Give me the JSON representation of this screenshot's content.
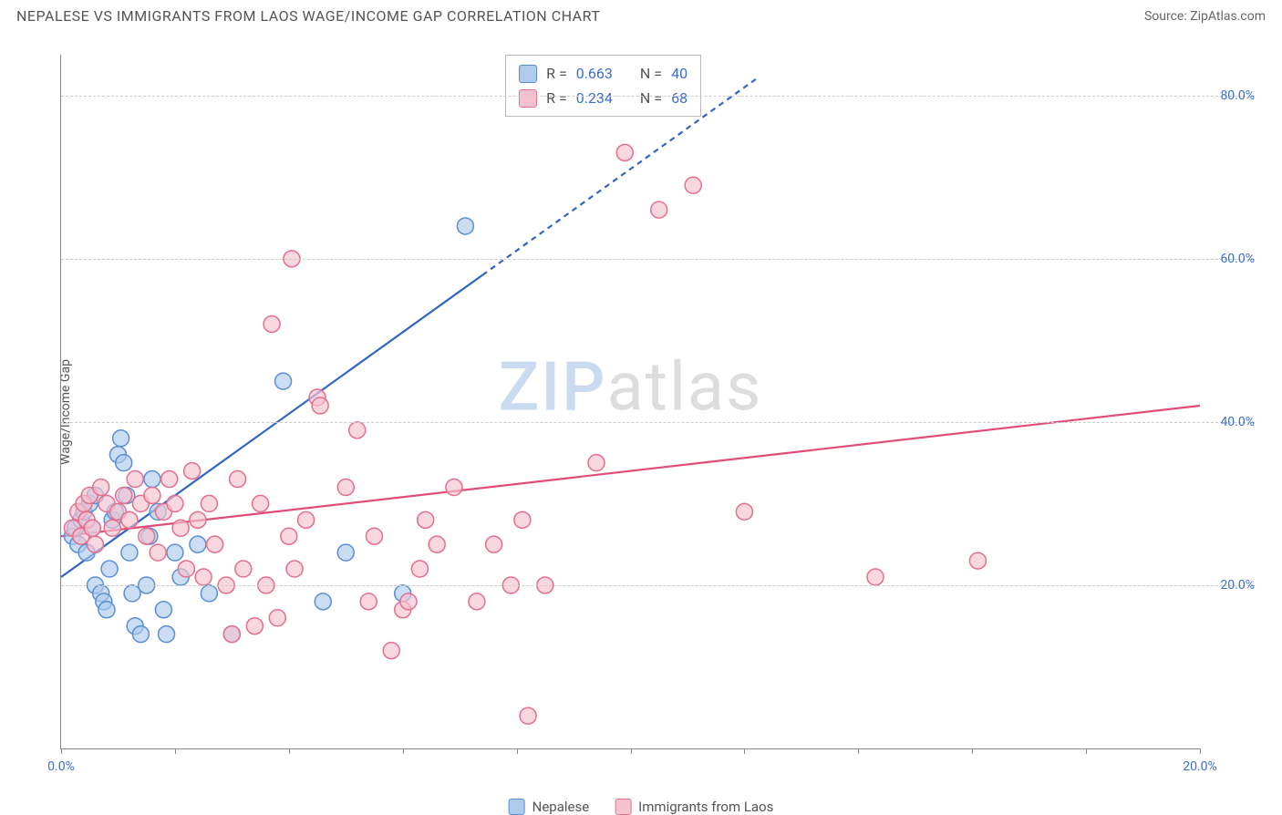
{
  "header": {
    "title": "NEPALESE VS IMMIGRANTS FROM LAOS WAGE/INCOME GAP CORRELATION CHART",
    "source": "Source: ZipAtlas.com"
  },
  "watermark": {
    "zip": "ZIP",
    "atlas": "atlas"
  },
  "chart": {
    "ylabel": "Wage/Income Gap",
    "xlim": [
      0,
      20
    ],
    "ylim": [
      0,
      85
    ],
    "yticks": [
      20,
      40,
      60,
      80
    ],
    "ytick_labels": [
      "20.0%",
      "40.0%",
      "60.0%",
      "80.0%"
    ],
    "xticks": [
      0,
      2,
      4,
      6,
      8,
      10,
      12,
      14,
      16,
      18,
      20
    ],
    "xtick_labels_shown": {
      "0": "0.0%",
      "20": "20.0%"
    },
    "grid_color": "#cccccc",
    "axis_color": "#888888",
    "background_color": "#ffffff",
    "marker_radius": 9,
    "marker_stroke_width": 1.5,
    "trend_line_width": 2.2,
    "series": [
      {
        "name": "Nepalese",
        "color_fill": "#aecbeb",
        "color_stroke": "#5a8fd6",
        "line_color": "#2f66c4",
        "R": 0.663,
        "N": 40,
        "trend": {
          "x1": 0,
          "y1": 21,
          "x2_solid": 7.4,
          "y2_solid": 58,
          "x2_dash": 12.2,
          "y2_dash": 82
        },
        "points": [
          [
            0.2,
            26
          ],
          [
            0.25,
            27
          ],
          [
            0.3,
            25
          ],
          [
            0.35,
            28
          ],
          [
            0.4,
            29
          ],
          [
            0.45,
            24
          ],
          [
            0.5,
            30
          ],
          [
            0.55,
            27
          ],
          [
            0.6,
            31
          ],
          [
            0.6,
            20
          ],
          [
            0.7,
            19
          ],
          [
            0.75,
            18
          ],
          [
            0.8,
            17
          ],
          [
            0.85,
            22
          ],
          [
            0.9,
            28
          ],
          [
            0.95,
            29
          ],
          [
            1.0,
            36
          ],
          [
            1.05,
            38
          ],
          [
            1.1,
            35
          ],
          [
            1.15,
            31
          ],
          [
            1.2,
            24
          ],
          [
            1.25,
            19
          ],
          [
            1.3,
            15
          ],
          [
            1.4,
            14
          ],
          [
            1.5,
            20
          ],
          [
            1.55,
            26
          ],
          [
            1.6,
            33
          ],
          [
            1.7,
            29
          ],
          [
            1.8,
            17
          ],
          [
            1.85,
            14
          ],
          [
            2.0,
            24
          ],
          [
            2.1,
            21
          ],
          [
            2.4,
            25
          ],
          [
            2.6,
            19
          ],
          [
            3.0,
            14
          ],
          [
            3.9,
            45
          ],
          [
            4.6,
            18
          ],
          [
            5.0,
            24
          ],
          [
            6.0,
            19
          ],
          [
            7.1,
            64
          ]
        ]
      },
      {
        "name": "Immigrants from Laos",
        "color_fill": "#f5c2cf",
        "color_stroke": "#e46f8d",
        "line_color": "#e04d77",
        "R": 0.234,
        "N": 68,
        "trend": {
          "x1": 0,
          "y1": 26,
          "x2_solid": 20,
          "y2_solid": 42,
          "x2_dash": 20,
          "y2_dash": 42
        },
        "points": [
          [
            0.2,
            27
          ],
          [
            0.3,
            29
          ],
          [
            0.35,
            26
          ],
          [
            0.4,
            30
          ],
          [
            0.45,
            28
          ],
          [
            0.5,
            31
          ],
          [
            0.55,
            27
          ],
          [
            0.6,
            25
          ],
          [
            0.7,
            32
          ],
          [
            0.8,
            30
          ],
          [
            0.9,
            27
          ],
          [
            1.0,
            29
          ],
          [
            1.1,
            31
          ],
          [
            1.2,
            28
          ],
          [
            1.3,
            33
          ],
          [
            1.4,
            30
          ],
          [
            1.5,
            26
          ],
          [
            1.6,
            31
          ],
          [
            1.7,
            24
          ],
          [
            1.8,
            29
          ],
          [
            1.9,
            33
          ],
          [
            2.0,
            30
          ],
          [
            2.1,
            27
          ],
          [
            2.2,
            22
          ],
          [
            2.3,
            34
          ],
          [
            2.4,
            28
          ],
          [
            2.5,
            21
          ],
          [
            2.6,
            30
          ],
          [
            2.7,
            25
          ],
          [
            2.9,
            20
          ],
          [
            3.0,
            14
          ],
          [
            3.1,
            33
          ],
          [
            3.2,
            22
          ],
          [
            3.4,
            15
          ],
          [
            3.5,
            30
          ],
          [
            3.6,
            20
          ],
          [
            3.7,
            52
          ],
          [
            3.8,
            16
          ],
          [
            4.0,
            26
          ],
          [
            4.05,
            60
          ],
          [
            4.1,
            22
          ],
          [
            4.3,
            28
          ],
          [
            4.5,
            43
          ],
          [
            4.55,
            42
          ],
          [
            5.0,
            32
          ],
          [
            5.2,
            39
          ],
          [
            5.4,
            18
          ],
          [
            5.5,
            26
          ],
          [
            5.8,
            12
          ],
          [
            6.0,
            17
          ],
          [
            6.1,
            18
          ],
          [
            6.3,
            22
          ],
          [
            6.4,
            28
          ],
          [
            6.6,
            25
          ],
          [
            6.9,
            32
          ],
          [
            7.3,
            18
          ],
          [
            7.6,
            25
          ],
          [
            7.9,
            20
          ],
          [
            8.1,
            28
          ],
          [
            8.2,
            4
          ],
          [
            8.5,
            20
          ],
          [
            9.4,
            35
          ],
          [
            9.9,
            73
          ],
          [
            10.5,
            66
          ],
          [
            11.1,
            69
          ],
          [
            12.0,
            29
          ],
          [
            14.3,
            21
          ],
          [
            16.1,
            23
          ]
        ]
      }
    ]
  },
  "stats_box": {
    "rows": [
      {
        "swatch_fill": "#aecbeb",
        "swatch_stroke": "#5a8fd6",
        "r_label": "R =",
        "r_val": "0.663",
        "n_label": "N =",
        "n_val": "40"
      },
      {
        "swatch_fill": "#f5c2cf",
        "swatch_stroke": "#e46f8d",
        "r_label": "R =",
        "r_val": "0.234",
        "n_label": "N =",
        "n_val": "68"
      }
    ]
  },
  "legend_bottom": {
    "items": [
      {
        "swatch_fill": "#aecbeb",
        "swatch_stroke": "#5a8fd6",
        "label": "Nepalese"
      },
      {
        "swatch_fill": "#f5c2cf",
        "swatch_stroke": "#e46f8d",
        "label": "Immigrants from Laos"
      }
    ]
  }
}
